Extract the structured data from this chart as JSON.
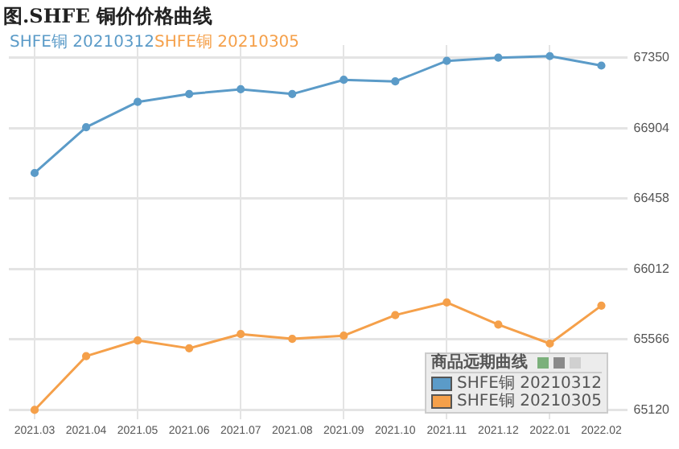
{
  "chart_data": {
    "type": "line",
    "title": "图.SHFE 铜价价格曲线",
    "categories": [
      "2021.03",
      "2021.04",
      "2021.05",
      "2021.06",
      "2021.07",
      "2021.08",
      "2021.09",
      "2021.10",
      "2021.11",
      "2021.12",
      "2022.01",
      "2022.02"
    ],
    "series": [
      {
        "name": "SHFE铜 20210312",
        "color": "#5b9bc8",
        "values": [
          66620,
          66910,
          67070,
          67120,
          67150,
          67120,
          67210,
          67200,
          67330,
          67350,
          67360,
          67300
        ]
      },
      {
        "name": "SHFE铜 20210305",
        "color": "#f5a04a",
        "values": [
          65120,
          65460,
          65560,
          65510,
          65600,
          65570,
          65590,
          65720,
          65800,
          65660,
          65540,
          65780
        ]
      }
    ],
    "ylim": [
      65060,
      67430
    ],
    "yticks": [
      65120,
      65566,
      66012,
      66458,
      66904,
      67350
    ],
    "grid": true,
    "legend": "bottom right",
    "legend_title": "商品远期曲线",
    "marker": "circle",
    "line_style": "solid"
  }
}
